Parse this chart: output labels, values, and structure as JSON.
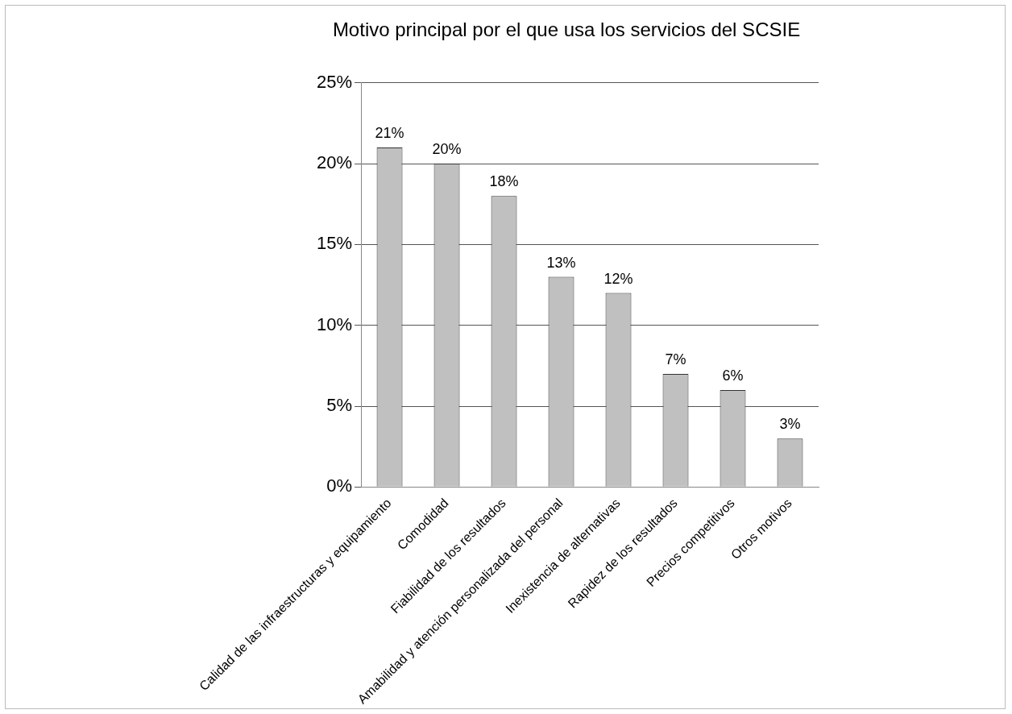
{
  "chart_data": {
    "type": "bar",
    "title": "Motivo principal por el que usa los servicios del SCSIE",
    "categories": [
      "Calidad de las infraestructuras y equipamiento",
      "Comodidad",
      "Fiabilidad de los resultados",
      "Amabilidad y atención personalizada del personal",
      "Inexistencia de alternativas",
      "Rapidez de los resultados",
      "Precios competitivos",
      "Otros motivos"
    ],
    "values": [
      21,
      20,
      18,
      13,
      12,
      7,
      6,
      3
    ],
    "value_labels": [
      "21%",
      "20%",
      "18%",
      "13%",
      "12%",
      "7%",
      "6%",
      "3%"
    ],
    "color": "#c0c0c0",
    "ylim": [
      0,
      25
    ],
    "yticks": [
      {
        "value": 0,
        "label": "0%"
      },
      {
        "value": 5,
        "label": "5%"
      },
      {
        "value": 10,
        "label": "10%"
      },
      {
        "value": 15,
        "label": "15%"
      },
      {
        "value": 20,
        "label": "20%"
      },
      {
        "value": 25,
        "label": "25%"
      }
    ],
    "grid": "y"
  }
}
